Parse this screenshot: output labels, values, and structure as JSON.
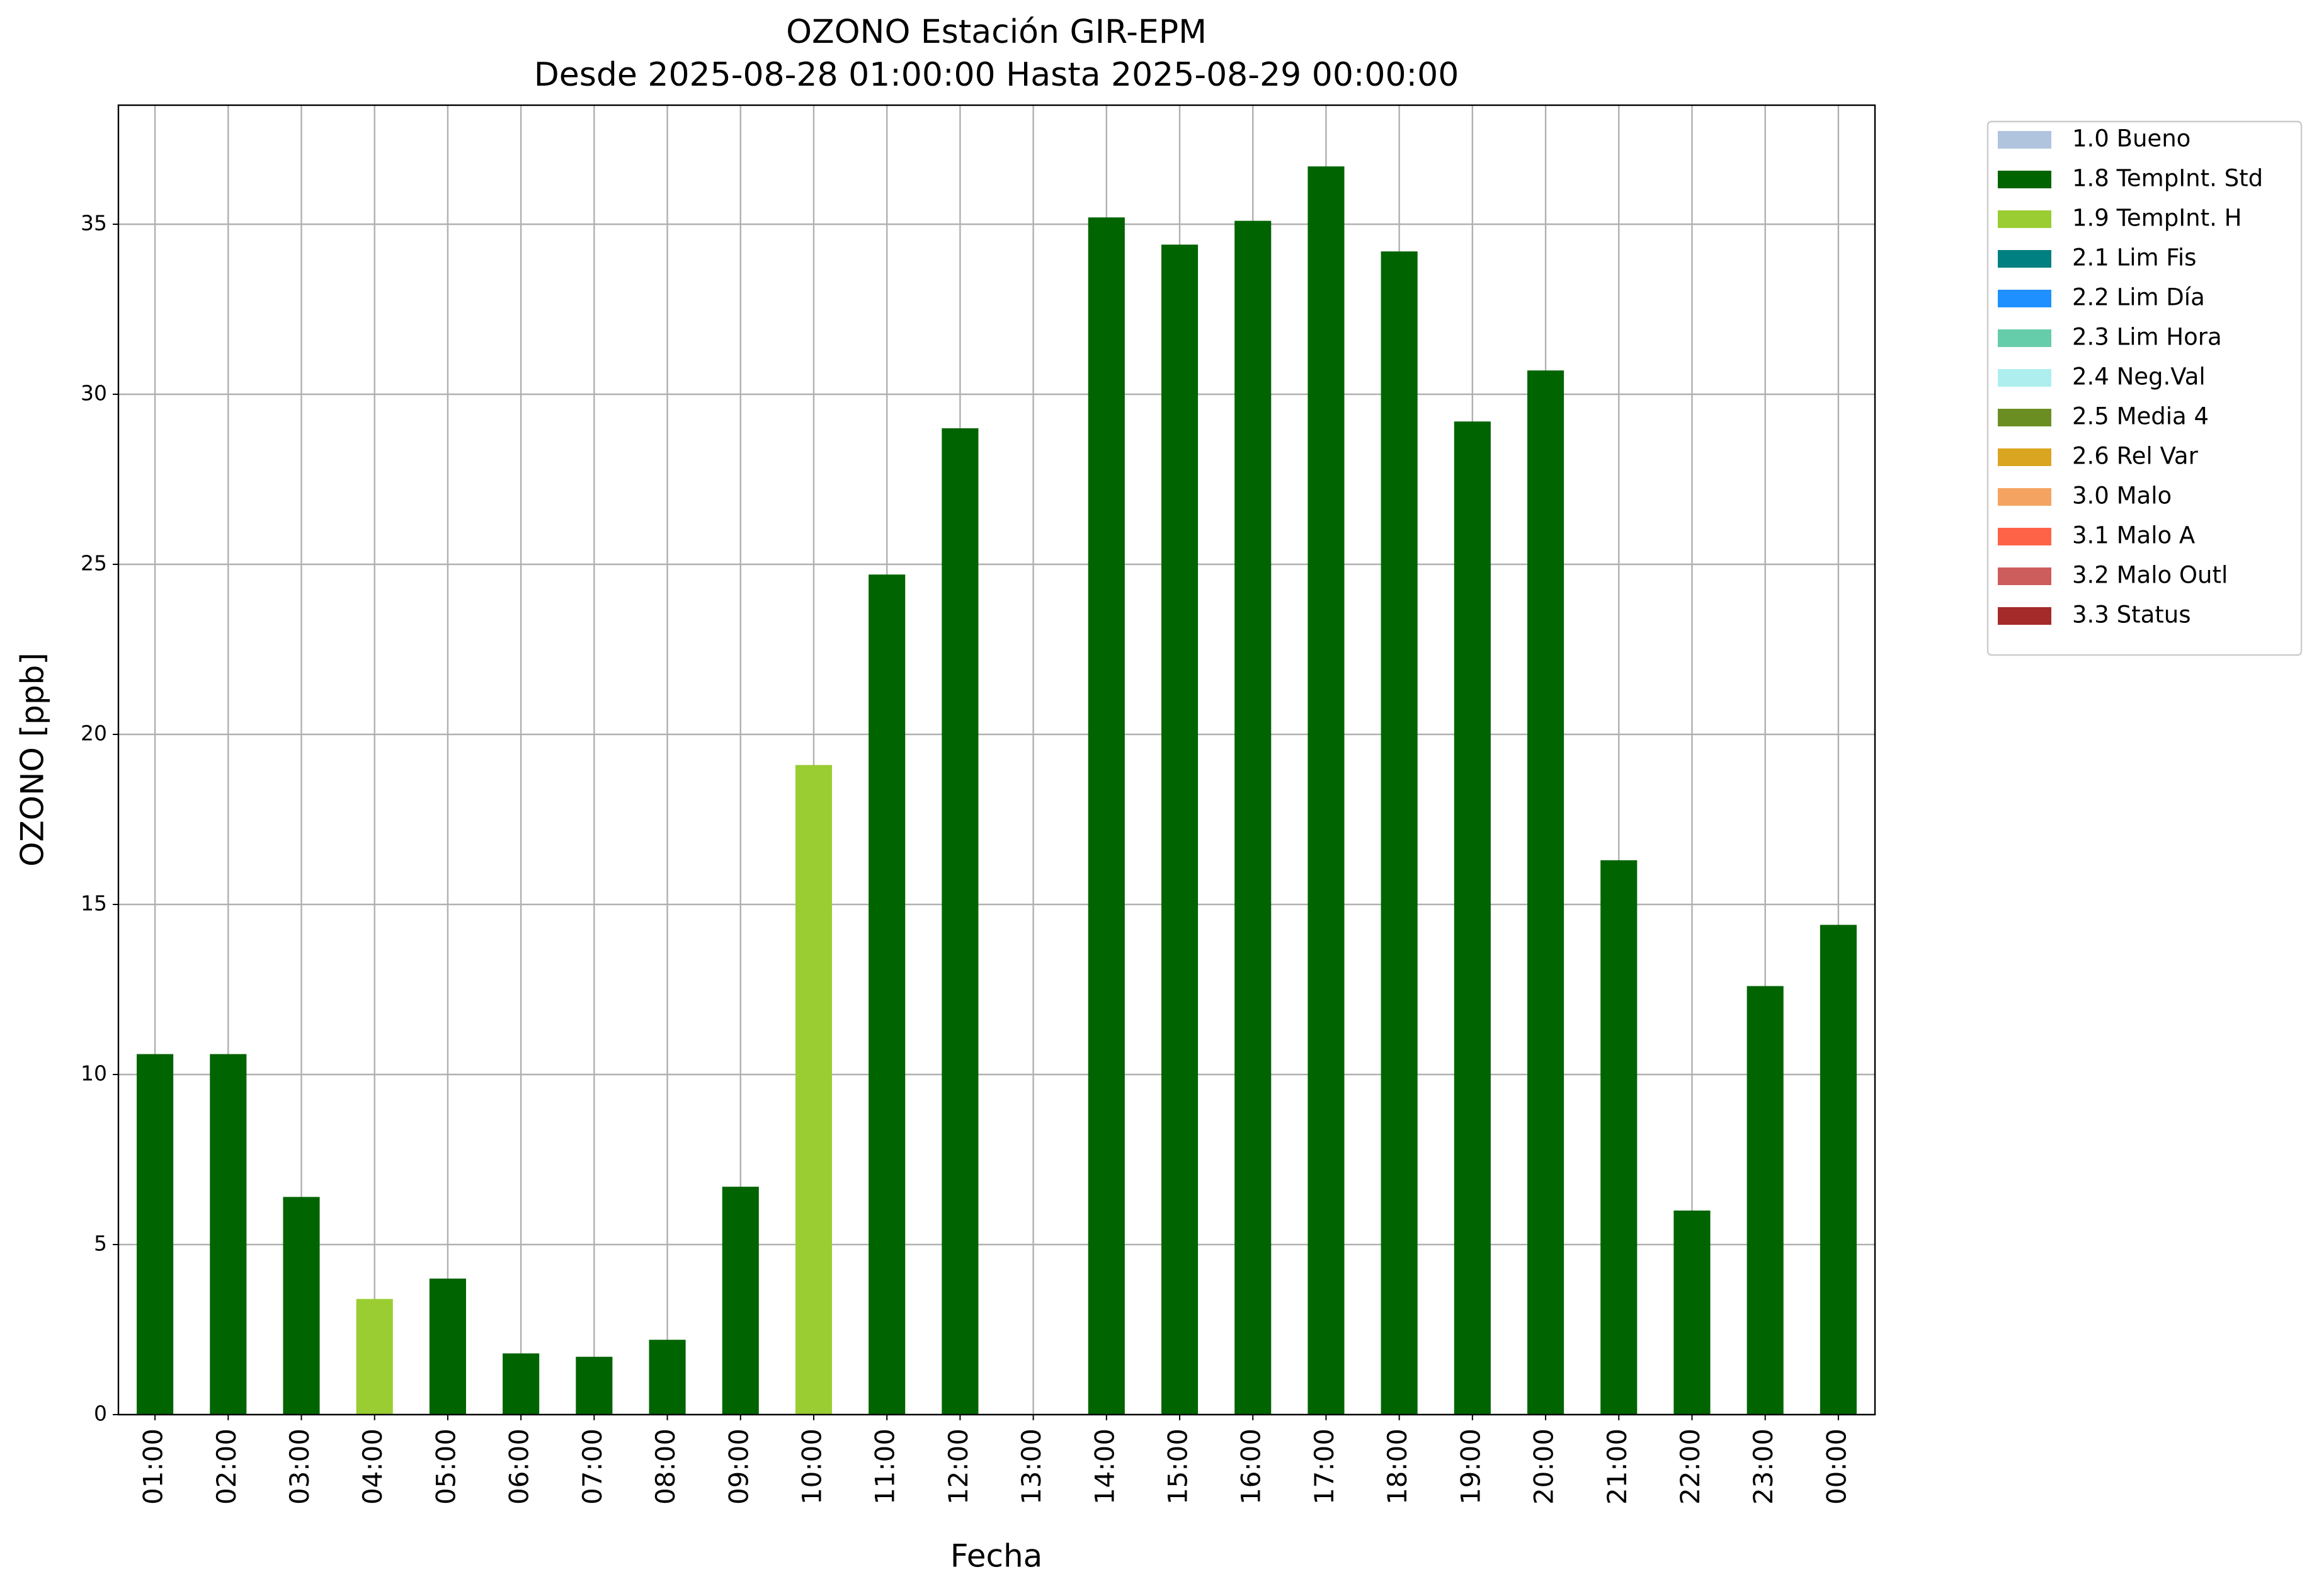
{
  "chart_data": {
    "type": "bar",
    "title": "OZONO Estación GIR-EPM",
    "subtitle": "Desde 2025-08-28 01:00:00 Hasta 2025-08-29 00:00:00",
    "x_label": "Fecha",
    "y_label": "OZONO [ppb]",
    "categories": [
      "01:00",
      "02:00",
      "03:00",
      "04:00",
      "05:00",
      "06:00",
      "07:00",
      "08:00",
      "09:00",
      "10:00",
      "11:00",
      "12:00",
      "13:00",
      "14:00",
      "15:00",
      "16:00",
      "17:00",
      "18:00",
      "19:00",
      "20:00",
      "21:00",
      "22:00",
      "23:00",
      "00:00"
    ],
    "series": [
      {
        "name": "1.0 Bueno",
        "color": "#b0c4de",
        "values": [
          null,
          null,
          null,
          null,
          null,
          null,
          null,
          null,
          null,
          null,
          null,
          null,
          null,
          null,
          null,
          null,
          null,
          null,
          null,
          null,
          null,
          null,
          null,
          null
        ]
      },
      {
        "name": "1.8 TempInt. Std",
        "color": "#006400",
        "values": [
          10.6,
          10.6,
          6.4,
          null,
          4.0,
          1.8,
          1.7,
          2.2,
          6.7,
          null,
          24.7,
          29.0,
          null,
          35.2,
          34.4,
          35.1,
          36.7,
          34.2,
          29.2,
          30.7,
          16.3,
          6.0,
          12.6,
          14.4
        ]
      },
      {
        "name": "1.9 TempInt. H",
        "color": "#9acd32",
        "values": [
          null,
          null,
          null,
          3.4,
          null,
          null,
          null,
          null,
          null,
          19.1,
          null,
          null,
          null,
          null,
          null,
          null,
          null,
          null,
          null,
          null,
          null,
          null,
          null,
          null
        ]
      },
      {
        "name": "2.1 Lim Fis",
        "color": "#008080",
        "values": [
          null,
          null,
          null,
          null,
          null,
          null,
          null,
          null,
          null,
          null,
          null,
          null,
          null,
          null,
          null,
          null,
          null,
          null,
          null,
          null,
          null,
          null,
          null,
          null
        ]
      },
      {
        "name": "2.2 Lim Día",
        "color": "#1e90ff",
        "values": [
          null,
          null,
          null,
          null,
          null,
          null,
          null,
          null,
          null,
          null,
          null,
          null,
          null,
          null,
          null,
          null,
          null,
          null,
          null,
          null,
          null,
          null,
          null,
          null
        ]
      },
      {
        "name": "2.3 Lim Hora",
        "color": "#66cdaa",
        "values": [
          null,
          null,
          null,
          null,
          null,
          null,
          null,
          null,
          null,
          null,
          null,
          null,
          null,
          null,
          null,
          null,
          null,
          null,
          null,
          null,
          null,
          null,
          null,
          null
        ]
      },
      {
        "name": "2.4 Neg.Val",
        "color": "#afeeee",
        "values": [
          null,
          null,
          null,
          null,
          null,
          null,
          null,
          null,
          null,
          null,
          null,
          null,
          null,
          null,
          null,
          null,
          null,
          null,
          null,
          null,
          null,
          null,
          null,
          null
        ]
      },
      {
        "name": "2.5 Media 4",
        "color": "#6b8e23",
        "values": [
          null,
          null,
          null,
          null,
          null,
          null,
          null,
          null,
          null,
          null,
          null,
          null,
          null,
          null,
          null,
          null,
          null,
          null,
          null,
          null,
          null,
          null,
          null,
          null
        ]
      },
      {
        "name": "2.6 Rel Var",
        "color": "#daa520",
        "values": [
          null,
          null,
          null,
          null,
          null,
          null,
          null,
          null,
          null,
          null,
          null,
          null,
          null,
          null,
          null,
          null,
          null,
          null,
          null,
          null,
          null,
          null,
          null,
          null
        ]
      },
      {
        "name": "3.0 Malo",
        "color": "#f4a460",
        "values": [
          null,
          null,
          null,
          null,
          null,
          null,
          null,
          null,
          null,
          null,
          null,
          null,
          null,
          null,
          null,
          null,
          null,
          null,
          null,
          null,
          null,
          null,
          null,
          null
        ]
      },
      {
        "name": "3.1 Malo A",
        "color": "#ff6347",
        "values": [
          null,
          null,
          null,
          null,
          null,
          null,
          null,
          null,
          null,
          null,
          null,
          null,
          null,
          null,
          null,
          null,
          null,
          null,
          null,
          null,
          null,
          null,
          null,
          null
        ]
      },
      {
        "name": "3.2 Malo Outl",
        "color": "#cd5c5c",
        "values": [
          null,
          null,
          null,
          null,
          null,
          null,
          null,
          null,
          null,
          null,
          null,
          null,
          null,
          null,
          null,
          null,
          null,
          null,
          null,
          null,
          null,
          null,
          null,
          null
        ]
      },
      {
        "name": "3.3 Status",
        "color": "#a52a2a",
        "values": [
          null,
          null,
          null,
          null,
          null,
          null,
          null,
          null,
          null,
          null,
          null,
          null,
          null,
          null,
          null,
          null,
          null,
          null,
          null,
          null,
          null,
          null,
          null,
          null
        ]
      }
    ],
    "ylim": [
      0,
      38.5
    ],
    "yticks": [
      0,
      5,
      10,
      15,
      20,
      25,
      30,
      35
    ],
    "grid": true,
    "legend": "outside-right"
  }
}
